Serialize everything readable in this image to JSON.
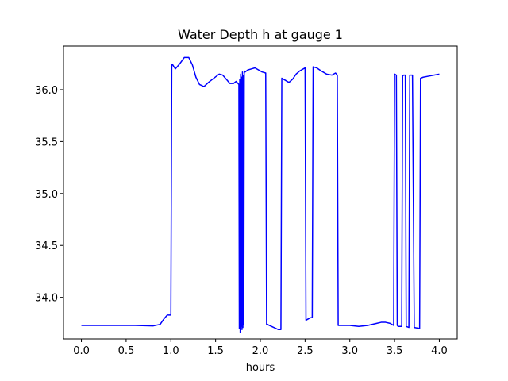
{
  "chart_data": {
    "type": "line",
    "title": "Water Depth h at gauge 1",
    "xlabel": "hours",
    "ylabel": "",
    "xlim": [
      -0.2,
      4.2
    ],
    "ylim": [
      33.6,
      36.42
    ],
    "xticks": [
      0.0,
      0.5,
      1.0,
      1.5,
      2.0,
      2.5,
      3.0,
      3.5,
      4.0
    ],
    "xtick_labels": [
      "0.0",
      "0.5",
      "1.0",
      "1.5",
      "2.0",
      "2.5",
      "3.0",
      "3.5",
      "4.0"
    ],
    "yticks": [
      34.0,
      34.5,
      35.0,
      35.5,
      36.0
    ],
    "ytick_labels": [
      "34.0",
      "34.5",
      "35.0",
      "35.5",
      "36.0"
    ],
    "grid": false,
    "series": [
      {
        "color": "#0000ff",
        "x": [
          0.0,
          0.2,
          0.4,
          0.6,
          0.8,
          0.88,
          0.92,
          0.96,
          1.0,
          1.01,
          1.02,
          1.05,
          1.1,
          1.15,
          1.2,
          1.24,
          1.28,
          1.32,
          1.37,
          1.42,
          1.48,
          1.54,
          1.58,
          1.62,
          1.66,
          1.7,
          1.73,
          1.76,
          1.765,
          1.77,
          1.775,
          1.78,
          1.785,
          1.79,
          1.795,
          1.8,
          1.805,
          1.81,
          1.815,
          1.82,
          1.83,
          1.86,
          1.9,
          1.94,
          1.98,
          2.02,
          2.06,
          2.07,
          2.08,
          2.1,
          2.15,
          2.2,
          2.23,
          2.24,
          2.28,
          2.32,
          2.36,
          2.4,
          2.44,
          2.48,
          2.5,
          2.51,
          2.55,
          2.58,
          2.59,
          2.63,
          2.68,
          2.74,
          2.8,
          2.84,
          2.86,
          2.87,
          2.9,
          3.0,
          3.1,
          3.2,
          3.3,
          3.35,
          3.4,
          3.45,
          3.49,
          3.5,
          3.52,
          3.53,
          3.54,
          3.58,
          3.59,
          3.6,
          3.62,
          3.63,
          3.66,
          3.67,
          3.7,
          3.72,
          3.78,
          3.79,
          3.82,
          3.88,
          3.94,
          4.0
        ],
        "y": [
          33.73,
          33.73,
          33.73,
          33.73,
          33.725,
          33.74,
          33.79,
          33.83,
          33.83,
          36.24,
          36.24,
          36.2,
          36.25,
          36.31,
          36.31,
          36.24,
          36.12,
          36.05,
          36.03,
          36.07,
          36.11,
          36.15,
          36.14,
          36.1,
          36.06,
          36.06,
          36.08,
          36.05,
          33.7,
          36.1,
          33.66,
          36.15,
          33.72,
          36.12,
          33.69,
          36.17,
          33.71,
          36.14,
          33.74,
          36.18,
          36.17,
          36.19,
          36.2,
          36.21,
          36.19,
          36.17,
          36.16,
          33.74,
          33.74,
          33.73,
          33.71,
          33.69,
          33.69,
          36.11,
          36.09,
          36.07,
          36.1,
          36.15,
          36.18,
          36.2,
          36.21,
          33.78,
          33.8,
          33.81,
          36.22,
          36.21,
          36.18,
          36.15,
          36.14,
          36.16,
          36.14,
          33.73,
          33.73,
          33.73,
          33.72,
          33.73,
          33.75,
          33.76,
          33.76,
          33.75,
          33.73,
          36.15,
          36.14,
          33.73,
          33.72,
          33.72,
          36.13,
          36.14,
          36.14,
          33.72,
          33.71,
          36.14,
          36.14,
          33.71,
          33.7,
          36.11,
          36.12,
          36.13,
          36.14,
          36.15
        ]
      }
    ]
  }
}
